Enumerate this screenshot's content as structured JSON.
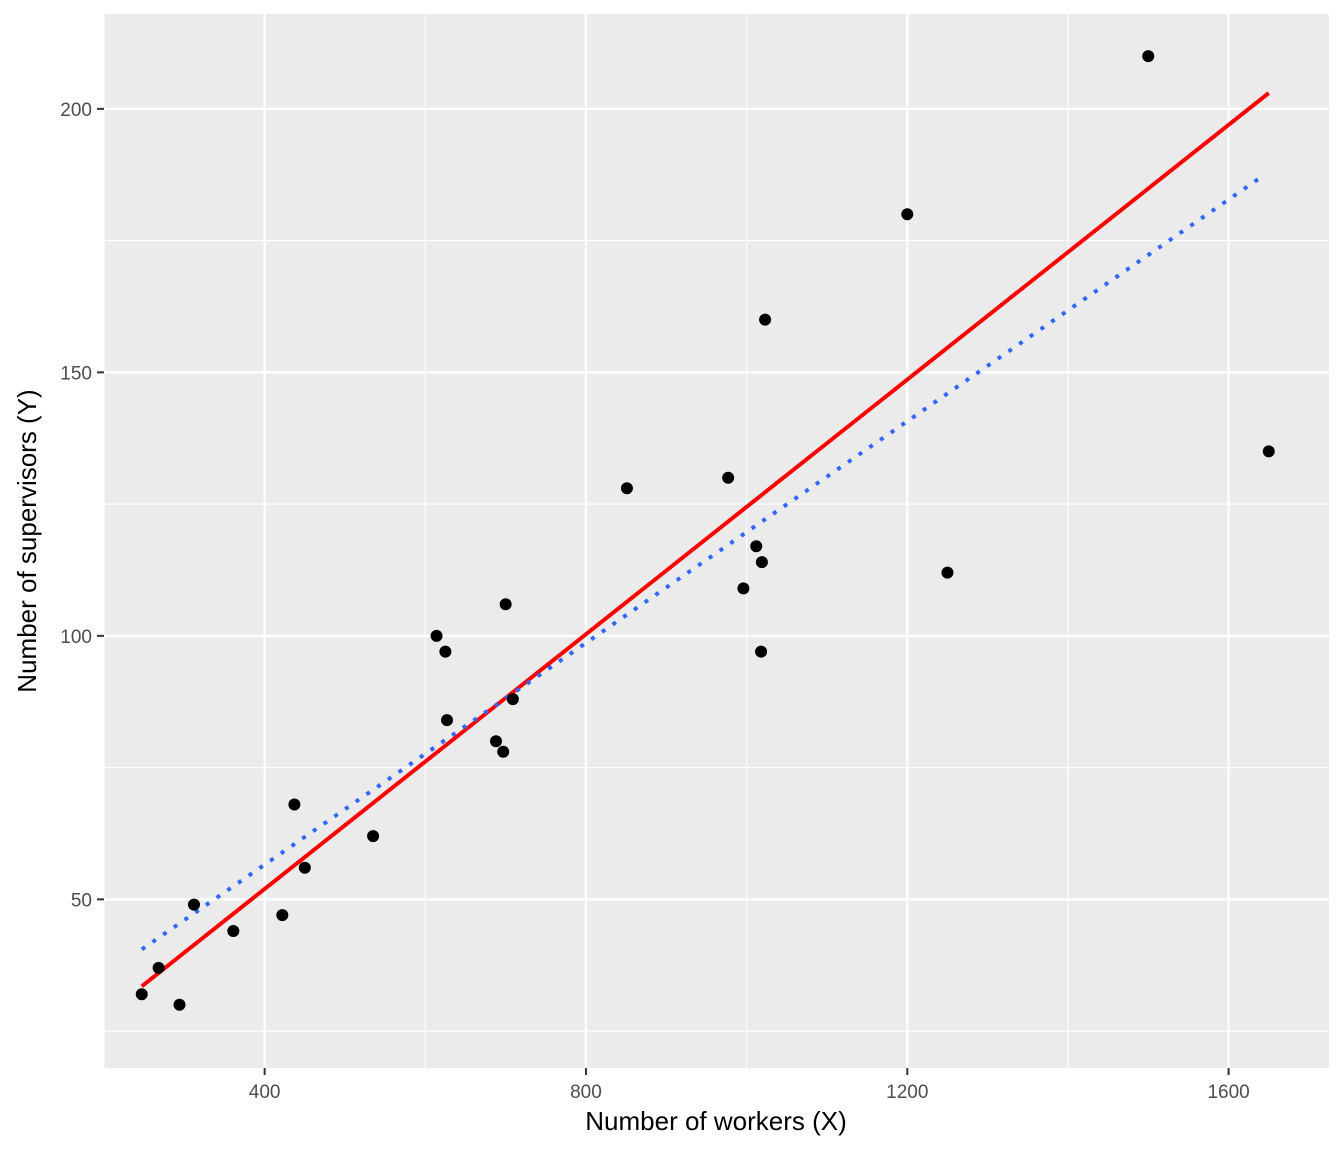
{
  "chart_data": {
    "type": "scatter",
    "xlabel": "Number of workers (X)",
    "ylabel": "Number of supervisors (Y)",
    "xlim": [
      200,
      1725
    ],
    "ylim": [
      18,
      218
    ],
    "x_ticks": [
      400,
      800,
      1200,
      1600
    ],
    "y_ticks": [
      50,
      100,
      150,
      200
    ],
    "x_tick_labels": [
      "400",
      "800",
      "1200",
      "1600"
    ],
    "y_tick_labels": [
      "50",
      "100",
      "150",
      "200"
    ],
    "x_minor": [
      200,
      600,
      1000,
      1400
    ],
    "y_minor": [
      25,
      75,
      125,
      175
    ],
    "grid": true,
    "colors": {
      "panel": "#ebebeb",
      "grid": "#ffffff",
      "points": "#000000",
      "ols_line": "#ff0000",
      "dotted_line": "#3366ff"
    },
    "points": [
      {
        "x": 247,
        "y": 32
      },
      {
        "x": 268,
        "y": 37
      },
      {
        "x": 294,
        "y": 30
      },
      {
        "x": 312,
        "y": 49
      },
      {
        "x": 361,
        "y": 44
      },
      {
        "x": 422,
        "y": 47
      },
      {
        "x": 437,
        "y": 68
      },
      {
        "x": 450,
        "y": 56
      },
      {
        "x": 535,
        "y": 62
      },
      {
        "x": 614,
        "y": 100
      },
      {
        "x": 625,
        "y": 97
      },
      {
        "x": 627,
        "y": 84
      },
      {
        "x": 688,
        "y": 80
      },
      {
        "x": 697,
        "y": 78
      },
      {
        "x": 700,
        "y": 106
      },
      {
        "x": 709,
        "y": 88
      },
      {
        "x": 851,
        "y": 128
      },
      {
        "x": 977,
        "y": 130
      },
      {
        "x": 996,
        "y": 109
      },
      {
        "x": 1012,
        "y": 117
      },
      {
        "x": 1018,
        "y": 97
      },
      {
        "x": 1019,
        "y": 114
      },
      {
        "x": 1023,
        "y": 160
      },
      {
        "x": 1200,
        "y": 180
      },
      {
        "x": 1250,
        "y": 112
      },
      {
        "x": 1500,
        "y": 210
      },
      {
        "x": 1650,
        "y": 135
      }
    ],
    "series": [
      {
        "style": "solid",
        "color": "#ff0000",
        "x": [
          247,
          1650
        ],
        "y": [
          33.5,
          203.0
        ]
      },
      {
        "style": "dotted",
        "color": "#3366ff",
        "x": [
          247,
          1640
        ],
        "y": [
          40.5,
          187.0
        ]
      }
    ]
  }
}
